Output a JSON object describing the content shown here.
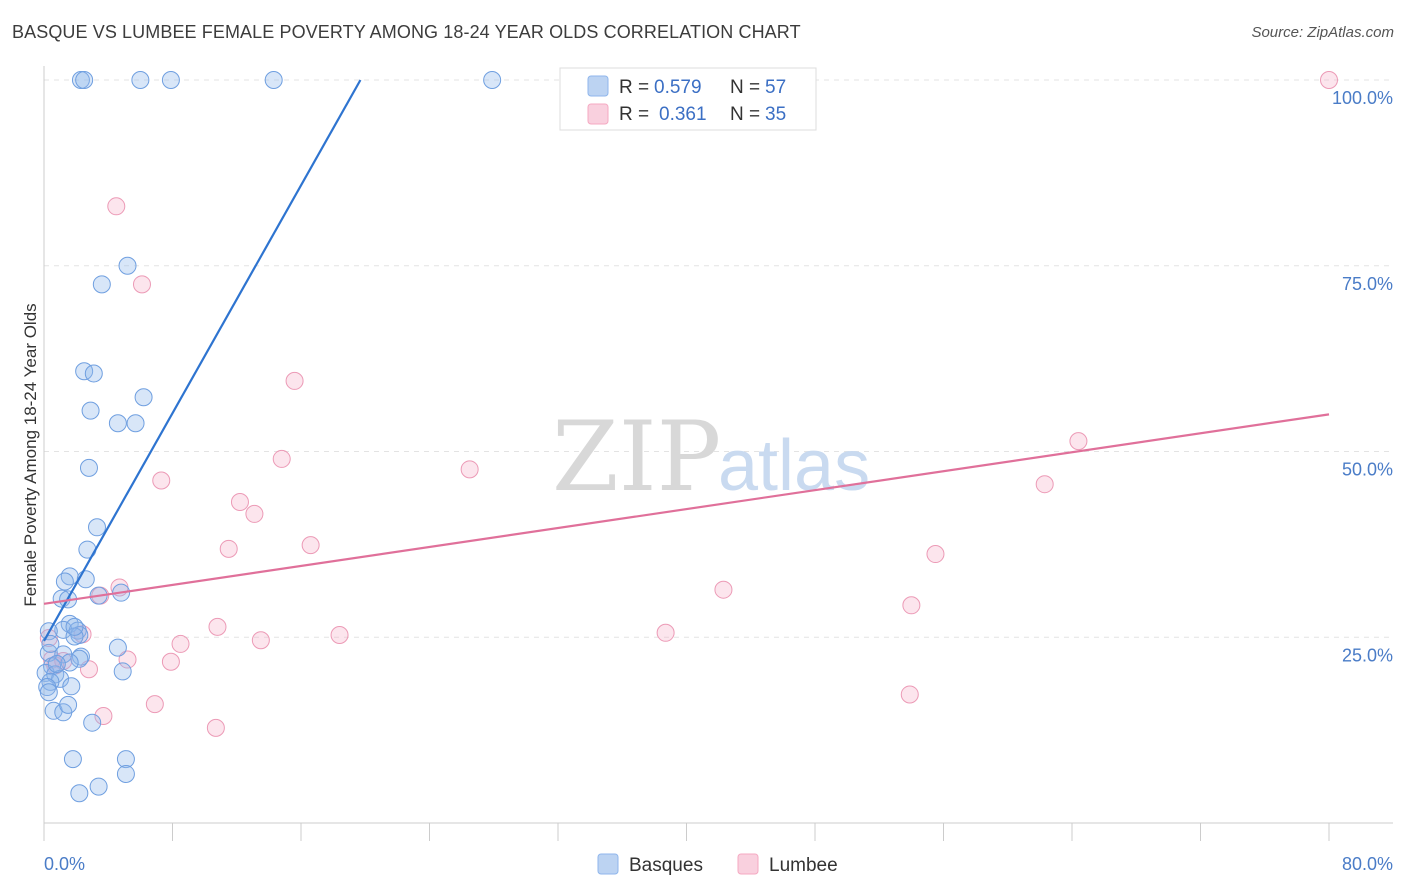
{
  "title": "BASQUE VS LUMBEE FEMALE POVERTY AMONG 18-24 YEAR OLDS CORRELATION CHART",
  "source": "Source: ZipAtlas.com",
  "watermark": {
    "zip": "ZIP",
    "atlas": "atlas"
  },
  "legend_top": [
    {
      "r_label": "R =",
      "r_value": "0.579",
      "n_label": "N =",
      "n_value": "57"
    },
    {
      "r_label": "R =",
      "r_value": "0.361",
      "n_label": "N =",
      "n_value": "35"
    }
  ],
  "legend_bottom": [
    "Basques",
    "Lumbee"
  ],
  "chart_data": {
    "type": "scatter",
    "title": "BASQUE VS LUMBEE FEMALE POVERTY AMONG 18-24 YEAR OLDS CORRELATION CHART",
    "xlabel": "",
    "ylabel": "Female Poverty Among 18-24 Year Olds",
    "xlim": [
      0,
      80
    ],
    "ylim": [
      0,
      100
    ],
    "x_tick_labels": [
      "0.0%",
      "80.0%"
    ],
    "y_ticks": [
      25,
      50,
      75,
      100
    ],
    "y_tick_labels": [
      "25.0%",
      "50.0%",
      "75.0%",
      "100.0%"
    ],
    "grid": true,
    "legend_position": "top-center and bottom-center",
    "colors": {
      "Basques": "#8fb6ec",
      "Lumbee": "#f5a9c2",
      "Basques_line": "#2e74d0",
      "Lumbee_line": "#e0709a"
    },
    "series": [
      {
        "name": "Basques",
        "r": 0.579,
        "n": 57,
        "trend": {
          "x": [
            0.0,
            19.7
          ],
          "y": [
            24.5,
            100.0
          ]
        },
        "points": [
          [
            2.3,
            100
          ],
          [
            2.5,
            100
          ],
          [
            6.0,
            100
          ],
          [
            7.9,
            100
          ],
          [
            14.3,
            100
          ],
          [
            27.9,
            100
          ],
          [
            5.2,
            75.0
          ],
          [
            3.6,
            72.5
          ],
          [
            2.5,
            60.8
          ],
          [
            3.1,
            60.5
          ],
          [
            6.2,
            57.3
          ],
          [
            2.9,
            55.5
          ],
          [
            4.6,
            53.8
          ],
          [
            5.7,
            53.8
          ],
          [
            2.8,
            47.8
          ],
          [
            3.3,
            39.8
          ],
          [
            2.7,
            36.8
          ],
          [
            1.6,
            33.2
          ],
          [
            2.6,
            32.8
          ],
          [
            1.3,
            32.5
          ],
          [
            1.1,
            30.2
          ],
          [
            1.5,
            30.1
          ],
          [
            3.4,
            30.6
          ],
          [
            4.8,
            31.0
          ],
          [
            1.6,
            26.8
          ],
          [
            1.2,
            26.0
          ],
          [
            2.1,
            25.9
          ],
          [
            2.2,
            25.3
          ],
          [
            1.9,
            25.1
          ],
          [
            0.3,
            25.8
          ],
          [
            0.3,
            22.9
          ],
          [
            1.2,
            22.7
          ],
          [
            2.3,
            22.4
          ],
          [
            2.2,
            22.1
          ],
          [
            1.6,
            21.6
          ],
          [
            0.5,
            21.1
          ],
          [
            0.1,
            20.2
          ],
          [
            0.7,
            20.0
          ],
          [
            1.0,
            19.4
          ],
          [
            0.4,
            19.0
          ],
          [
            0.2,
            18.3
          ],
          [
            0.3,
            17.6
          ],
          [
            1.7,
            18.4
          ],
          [
            4.6,
            23.6
          ],
          [
            4.9,
            20.4
          ],
          [
            0.6,
            15.1
          ],
          [
            1.2,
            14.9
          ],
          [
            1.5,
            15.9
          ],
          [
            3.0,
            13.5
          ],
          [
            1.8,
            8.6
          ],
          [
            5.1,
            8.6
          ],
          [
            5.1,
            6.6
          ],
          [
            3.4,
            4.9
          ],
          [
            2.2,
            4.0
          ],
          [
            0.4,
            24.1
          ],
          [
            0.8,
            21.4
          ],
          [
            1.9,
            26.4
          ]
        ]
      },
      {
        "name": "Lumbee",
        "r": 0.361,
        "n": 35,
        "trend": {
          "x": [
            0.0,
            80.0
          ],
          "y": [
            29.5,
            55.0
          ]
        },
        "points": [
          [
            80.0,
            100
          ],
          [
            4.5,
            83.0
          ],
          [
            6.1,
            72.5
          ],
          [
            15.6,
            59.5
          ],
          [
            14.8,
            49.0
          ],
          [
            26.5,
            47.6
          ],
          [
            7.3,
            46.1
          ],
          [
            64.4,
            51.4
          ],
          [
            62.3,
            45.6
          ],
          [
            12.2,
            43.2
          ],
          [
            13.1,
            41.6
          ],
          [
            11.5,
            36.9
          ],
          [
            16.6,
            37.4
          ],
          [
            55.5,
            36.2
          ],
          [
            4.7,
            31.7
          ],
          [
            3.5,
            30.6
          ],
          [
            42.3,
            31.4
          ],
          [
            54.0,
            29.3
          ],
          [
            10.8,
            26.4
          ],
          [
            13.5,
            24.6
          ],
          [
            18.4,
            25.3
          ],
          [
            38.7,
            25.6
          ],
          [
            8.5,
            24.1
          ],
          [
            2.4,
            25.4
          ],
          [
            0.3,
            24.9
          ],
          [
            0.5,
            22.0
          ],
          [
            0.7,
            21.2
          ],
          [
            7.9,
            21.7
          ],
          [
            5.2,
            22.0
          ],
          [
            2.8,
            20.7
          ],
          [
            6.9,
            16.0
          ],
          [
            53.9,
            17.3
          ],
          [
            3.7,
            14.4
          ],
          [
            10.7,
            12.8
          ],
          [
            1.2,
            21.8
          ]
        ]
      }
    ]
  }
}
